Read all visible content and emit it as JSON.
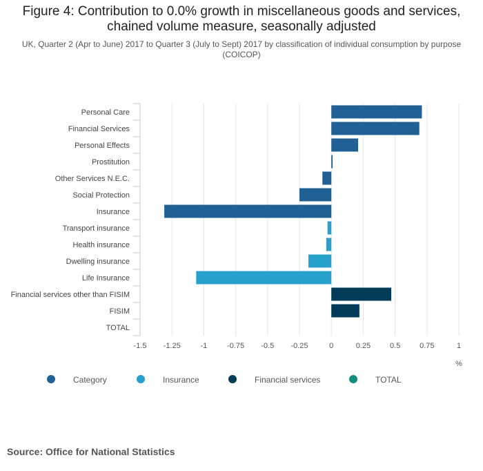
{
  "header": {
    "title": "Figure 4: Contribution to 0.0% growth in miscellaneous goods and services, chained volume measure, seasonally adjusted",
    "subtitle": "UK, Quarter 2 (Apr to June) 2017 to Quarter 3 (July to Sept) 2017 by classification of individual consumption by purpose (COICOP)"
  },
  "footer": {
    "source": "Source: Office for National Statistics"
  },
  "chart_data": {
    "type": "bar",
    "orientation": "horizontal",
    "title": "Figure 4: Contribution to 0.0% growth in miscellaneous goods and services, chained volume measure, seasonally adjusted",
    "subtitle": "UK, Quarter 2 (Apr to June) 2017 to Quarter 3 (July to Sept) 2017 by classification of individual consumption by purpose (COICOP)",
    "xlabel": "%",
    "ylabel": "",
    "xlim": [
      -1.5,
      1
    ],
    "xticks": [
      -1.5,
      -1.25,
      -1,
      -0.75,
      -0.5,
      -0.25,
      0,
      0.25,
      0.5,
      0.75,
      1
    ],
    "xtick_labels": [
      "-1.5",
      "-1.25",
      "-1",
      "-0.75",
      "-0.5",
      "-0.25",
      "0",
      "0.25",
      "0.5",
      "0.75",
      "1"
    ],
    "grid": "vertical",
    "legend_position": "bottom",
    "categories": [
      "Personal Care",
      "Financial Services",
      "Personal Effects",
      "Prostitution",
      "Other Services N.E.C.",
      "Social Protection",
      "Insurance",
      "Transport insurance",
      "Health insurance",
      "Dwelling insurance",
      "Life Insurance",
      "Financial services other than FISIM",
      "FISIM",
      "TOTAL"
    ],
    "values": [
      0.71,
      0.69,
      0.21,
      0.01,
      -0.07,
      -0.25,
      -1.31,
      -0.03,
      -0.04,
      -0.18,
      -1.06,
      0.47,
      0.22,
      0.0
    ],
    "groups": [
      "Category",
      "Category",
      "Category",
      "Category",
      "Category",
      "Category",
      "Category",
      "Insurance",
      "Insurance",
      "Insurance",
      "Insurance",
      "Financial services",
      "Financial services",
      "TOTAL"
    ],
    "legend": [
      {
        "name": "Category",
        "color": "#206095"
      },
      {
        "name": "Insurance",
        "color": "#27a0cc"
      },
      {
        "name": "Financial services",
        "color": "#003c57"
      },
      {
        "name": "TOTAL",
        "color": "#118c7b"
      }
    ]
  }
}
